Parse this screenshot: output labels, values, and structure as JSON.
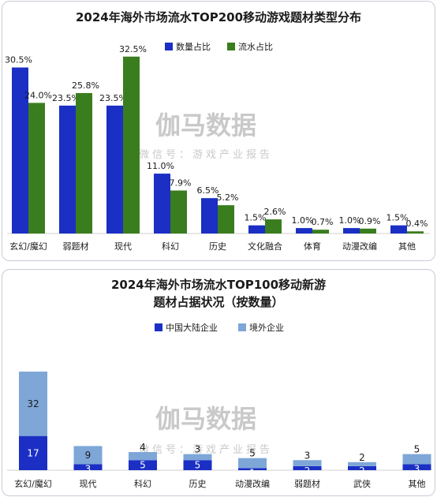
{
  "chart_data": [
    {
      "type": "bar",
      "title": "2024年海外市场流水TOP200移动游戏题材类型分布",
      "categories": [
        "玄幻/魔幻",
        "弱题材",
        "现代",
        "科幻",
        "历史",
        "文化融合",
        "体育",
        "动漫改编",
        "其他"
      ],
      "series": [
        {
          "name": "数量占比",
          "color": "#1b2fc4",
          "values": [
            30.5,
            23.5,
            23.5,
            11.0,
            6.5,
            1.5,
            1.0,
            1.0,
            1.5
          ],
          "labels": [
            "30.5%",
            "23.5%",
            "23.5%",
            "11.0%",
            "6.5%",
            "1.5%",
            "1.0%",
            "1.0%",
            "1.5%"
          ]
        },
        {
          "name": "流水占比",
          "color": "#3a7d1e",
          "values": [
            24.0,
            25.8,
            32.5,
            7.9,
            5.2,
            2.6,
            0.7,
            0.9,
            0.4
          ],
          "labels": [
            "24.0%",
            "25.8%",
            "32.5%",
            "7.9%",
            "5.2%",
            "2.6%",
            "0.7%",
            "0.9%",
            "0.4%"
          ]
        }
      ],
      "legend_position": "top-right",
      "grid": false
    },
    {
      "type": "bar",
      "stacked": true,
      "title": "2024年海外市场流水TOP100移动新游题材占据状况（按数量）",
      "title_lines": [
        "2024年海外市场流水TOP100移动新游",
        "题材占据状况（按数量）"
      ],
      "categories": [
        "玄幻/魔幻",
        "现代",
        "科幻",
        "历史",
        "动漫改编",
        "弱题材",
        "武侠",
        "其他"
      ],
      "series": [
        {
          "name": "中国大陆企业",
          "color": "#1b2fc4",
          "values": [
            17,
            3,
            5,
            5,
            1,
            2,
            2,
            3
          ]
        },
        {
          "name": "境外企业",
          "color": "#7ea7d8",
          "values": [
            32,
            9,
            4,
            3,
            5,
            3,
            2,
            5
          ]
        }
      ],
      "legend_position": "top-center",
      "grid": false
    }
  ],
  "watermark": {
    "logo": "伽马数据",
    "subtitle": "微信号：游戏产业报告"
  }
}
